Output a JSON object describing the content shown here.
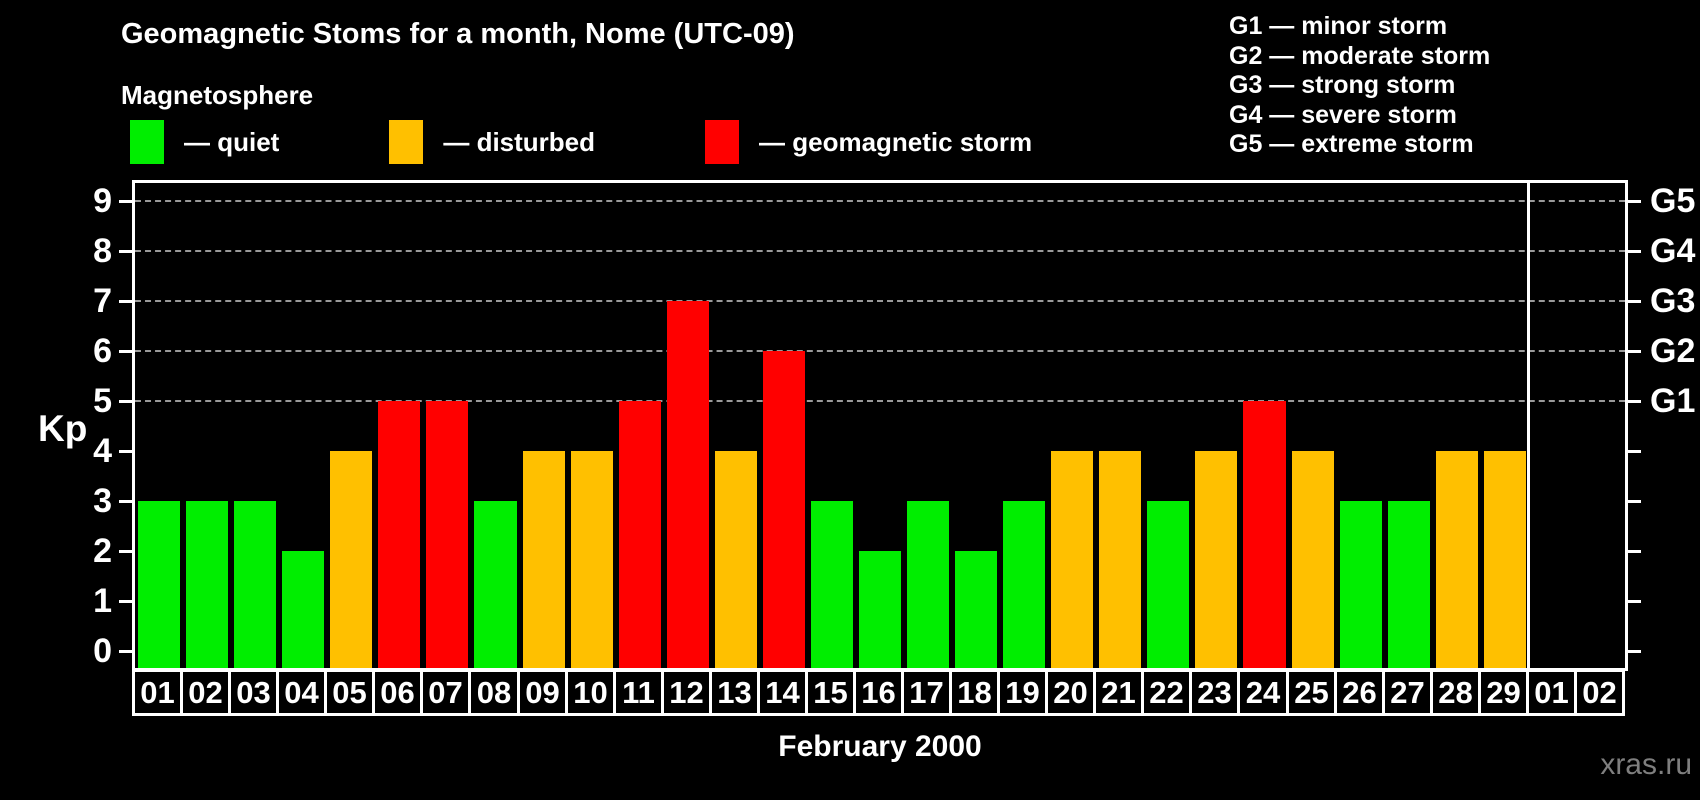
{
  "title": "Geomagnetic Stoms for a month, Nome (UTC-09)",
  "legend": {
    "heading": "Magnetosphere",
    "items": [
      {
        "label": "— quiet",
        "state": "quiet",
        "color": "#00ee00"
      },
      {
        "label": "— disturbed",
        "state": "disturbed",
        "color": "#ffc000"
      },
      {
        "label": "— geomagnetic storm",
        "state": "storm",
        "color": "#ff0000"
      }
    ]
  },
  "g_scale_legend": [
    "G1 — minor storm",
    "G2 — moderate storm",
    "G3 — strong storm",
    "G4 — severe storm",
    "G5 — extreme storm"
  ],
  "watermark": "xras.ru",
  "chart_data": {
    "type": "bar",
    "title": "Geomagnetic Stoms for a month, Nome (UTC-09)",
    "xlabel": "February 2000",
    "ylabel": "Kp",
    "ylim": [
      0,
      9
    ],
    "yticks": [
      0,
      1,
      2,
      3,
      4,
      5,
      6,
      7,
      8,
      9
    ],
    "gridlines_at_kp": [
      5,
      6,
      7,
      8,
      9
    ],
    "grid": "dashed horizontal at G-storm levels only",
    "legend_position": "top",
    "right_axis_labels": [
      {
        "kp": 5,
        "label": "G1"
      },
      {
        "kp": 6,
        "label": "G2"
      },
      {
        "kp": 7,
        "label": "G3"
      },
      {
        "kp": 8,
        "label": "G4"
      },
      {
        "kp": 9,
        "label": "G5"
      }
    ],
    "categories": [
      "01",
      "02",
      "03",
      "04",
      "05",
      "06",
      "07",
      "08",
      "09",
      "10",
      "11",
      "12",
      "13",
      "14",
      "15",
      "16",
      "17",
      "18",
      "19",
      "20",
      "21",
      "22",
      "23",
      "24",
      "25",
      "26",
      "27",
      "28",
      "29",
      "01",
      "02"
    ],
    "values": [
      3,
      3,
      3,
      2,
      4,
      5,
      5,
      3,
      4,
      4,
      5,
      7,
      4,
      6,
      3,
      2,
      3,
      2,
      3,
      4,
      4,
      3,
      4,
      5,
      4,
      3,
      3,
      4,
      4,
      null,
      null
    ],
    "states": [
      "quiet",
      "quiet",
      "quiet",
      "quiet",
      "disturbed",
      "storm",
      "storm",
      "quiet",
      "disturbed",
      "disturbed",
      "storm",
      "storm",
      "disturbed",
      "storm",
      "quiet",
      "quiet",
      "quiet",
      "quiet",
      "quiet",
      "disturbed",
      "disturbed",
      "quiet",
      "disturbed",
      "storm",
      "disturbed",
      "quiet",
      "quiet",
      "disturbed",
      "disturbed",
      null,
      null
    ],
    "month_boundary_index": 29,
    "colors": {
      "quiet": "#00ee00",
      "disturbed": "#ffc000",
      "storm": "#ff0000"
    }
  }
}
